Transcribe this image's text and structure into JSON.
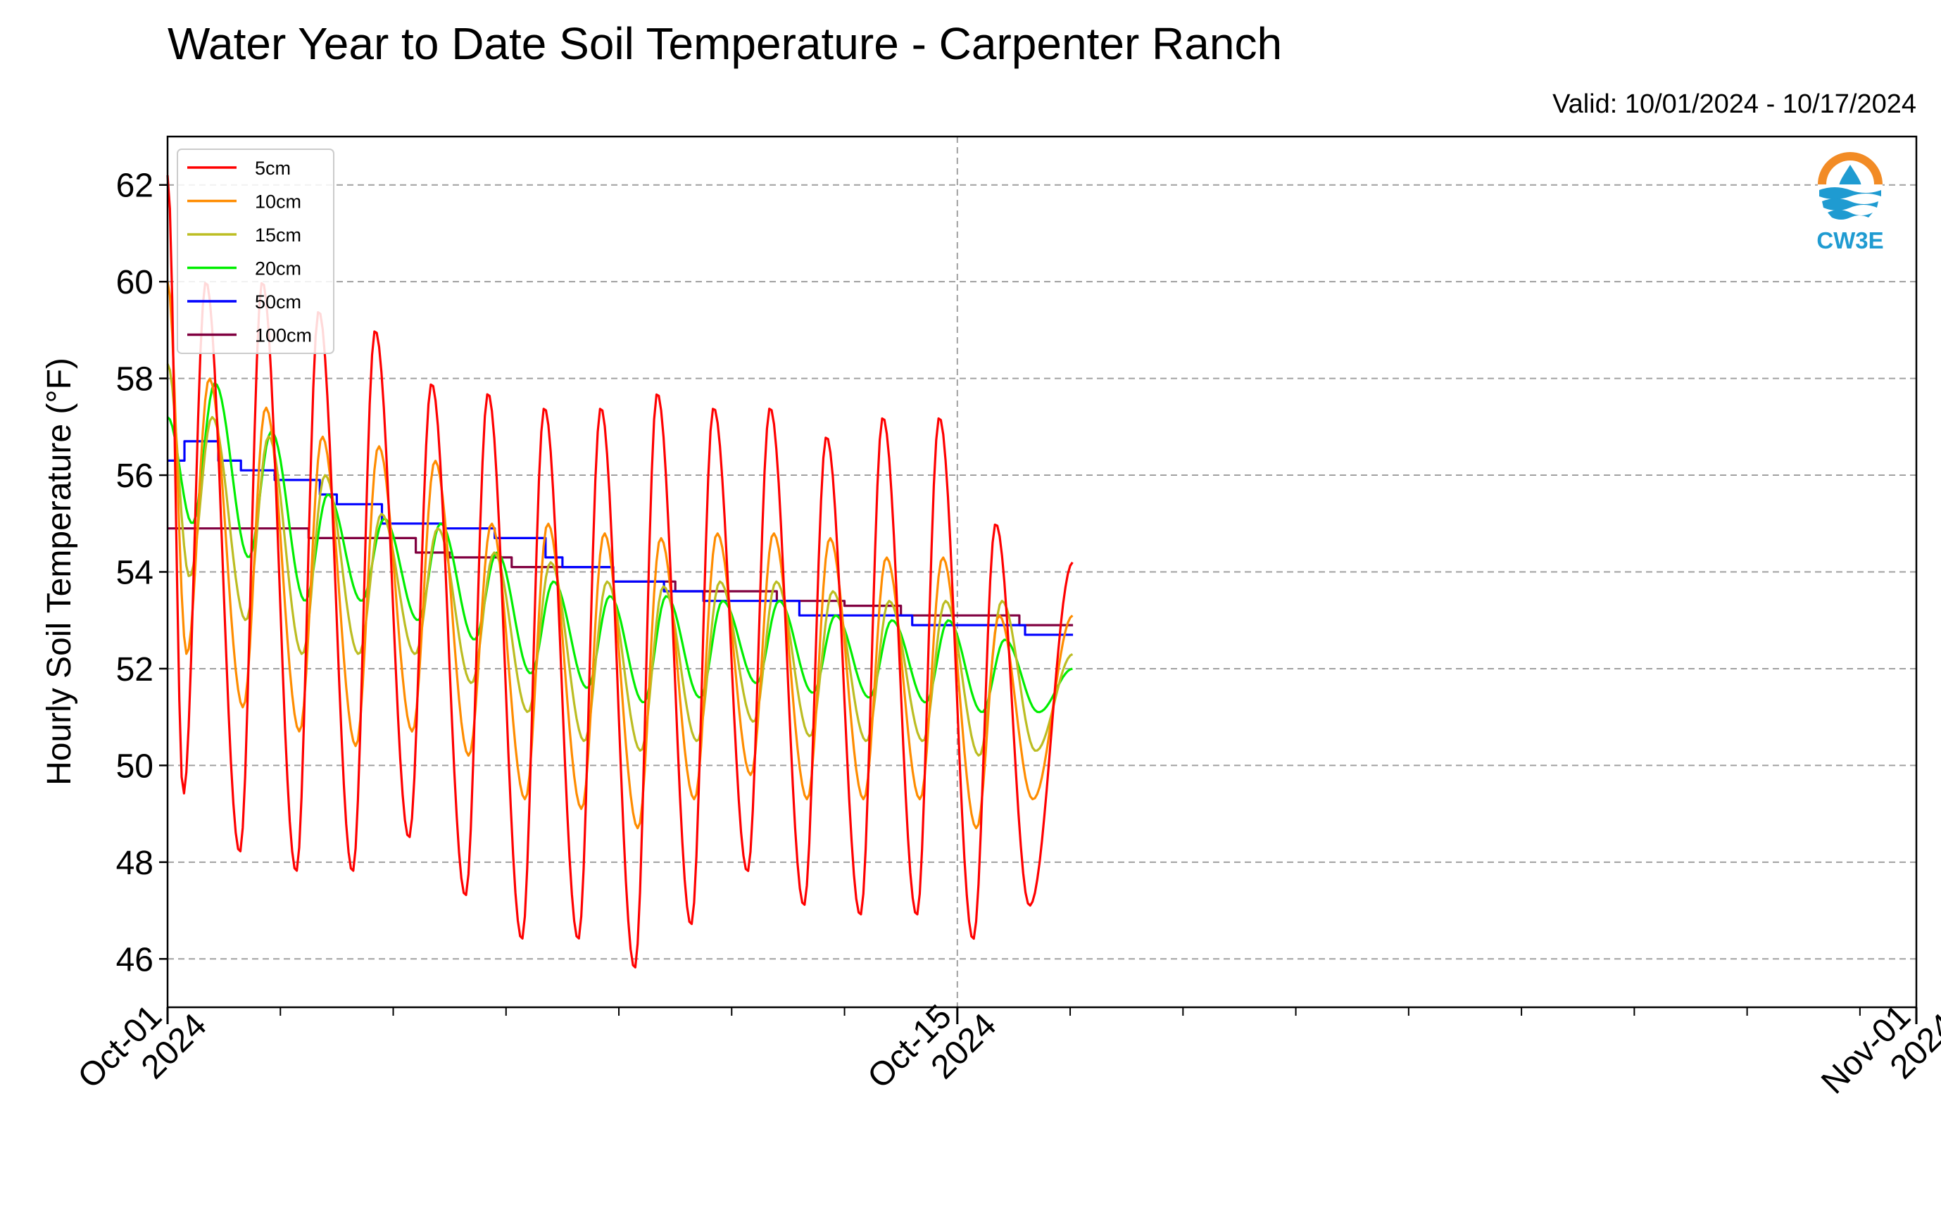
{
  "header": {
    "title": "Water Year to Date Soil Temperature - Carpenter Ranch",
    "valid": "Valid: 10/01/2024 - 10/17/2024"
  },
  "logo": {
    "text": "CW3E",
    "icon": "cw3e-water-drop-logo",
    "colors": [
      "#f28b25",
      "#1f9bd1"
    ]
  },
  "chart_data": {
    "type": "line",
    "title": "Water Year to Date Soil Temperature - Carpenter Ranch",
    "ylabel": "Hourly Soil Temperature (°F)",
    "xlabel": "",
    "ylim": [
      45,
      63
    ],
    "xlim_days": [
      0,
      31
    ],
    "grid": true,
    "legend_position": "top-left",
    "y_ticks": [
      46,
      48,
      50,
      52,
      54,
      56,
      58,
      60,
      62
    ],
    "x_major_ticks": [
      {
        "day": 0,
        "label": [
          "Oct-01",
          "2024"
        ]
      },
      {
        "day": 14,
        "label": [
          "Oct-15",
          "2024"
        ]
      },
      {
        "day": 31,
        "label": [
          "Nov-01",
          "2024"
        ]
      }
    ],
    "series": [
      {
        "name": "5cm",
        "color": "#ff0000",
        "start": 62.2,
        "end": 54.2,
        "end_day": 16.05,
        "phase": 0.0,
        "max": [
          60.0,
          60.0,
          59.4,
          59.0,
          57.9,
          57.7,
          57.4,
          57.4,
          57.7,
          57.4,
          57.4,
          56.8,
          57.2,
          57.2,
          55.0
        ],
        "min": [
          49.4,
          48.2,
          47.8,
          47.8,
          48.5,
          47.3,
          46.4,
          46.4,
          45.8,
          46.7,
          47.8,
          47.1,
          46.9,
          46.9,
          46.4,
          47.1
        ]
      },
      {
        "name": "10cm",
        "color": "#ff8c00",
        "start": 60.0,
        "end": 53.1,
        "end_day": 16.05,
        "phase": 0.06,
        "max": [
          58.0,
          57.4,
          56.8,
          56.6,
          56.3,
          55.0,
          55.0,
          54.8,
          54.7,
          54.8,
          54.8,
          54.7,
          54.3,
          54.3,
          53.1
        ],
        "min": [
          52.3,
          51.2,
          50.7,
          50.4,
          50.7,
          50.2,
          49.3,
          49.1,
          48.7,
          49.3,
          49.8,
          49.3,
          49.3,
          49.3,
          48.7,
          49.3
        ]
      },
      {
        "name": "15cm",
        "color": "#bcbd22",
        "start": 58.3,
        "end": 52.3,
        "end_day": 16.05,
        "phase": 0.11,
        "max": [
          57.2,
          56.8,
          56.0,
          55.2,
          54.9,
          54.4,
          54.2,
          53.8,
          53.7,
          53.8,
          53.8,
          53.6,
          53.4,
          53.4,
          53.4
        ],
        "min": [
          53.9,
          53.0,
          52.3,
          52.3,
          52.3,
          51.7,
          51.1,
          50.5,
          50.3,
          50.5,
          50.9,
          50.6,
          50.5,
          50.5,
          50.2,
          50.3
        ]
      },
      {
        "name": "20cm",
        "color": "#00ee00",
        "start": 57.2,
        "end": 52.0,
        "end_day": 16.05,
        "phase": 0.16,
        "max": [
          57.9,
          56.9,
          55.6,
          55.1,
          55.0,
          54.4,
          53.8,
          53.5,
          53.5,
          53.4,
          53.4,
          53.1,
          53.0,
          53.0,
          52.6
        ],
        "min": [
          55.0,
          54.3,
          53.4,
          53.4,
          53.0,
          52.6,
          51.9,
          51.6,
          51.3,
          51.4,
          51.7,
          51.5,
          51.4,
          51.3,
          51.1,
          51.1
        ]
      },
      {
        "name": "50cm",
        "color": "#0000ff",
        "steps": [
          [
            0,
            56.3
          ],
          [
            0.3,
            56.7
          ],
          [
            0.9,
            56.3
          ],
          [
            1.3,
            56.1
          ],
          [
            1.9,
            55.9
          ],
          [
            2.7,
            55.6
          ],
          [
            3.0,
            55.4
          ],
          [
            3.8,
            55.0
          ],
          [
            4.9,
            54.9
          ],
          [
            5.8,
            54.7
          ],
          [
            6.7,
            54.3
          ],
          [
            7.0,
            54.1
          ],
          [
            7.9,
            53.8
          ],
          [
            8.8,
            53.6
          ],
          [
            9.5,
            53.4
          ],
          [
            11.0,
            53.4
          ],
          [
            11.2,
            53.1
          ],
          [
            12.0,
            53.1
          ],
          [
            13.2,
            52.9
          ],
          [
            14.0,
            52.9
          ],
          [
            15.2,
            52.7
          ],
          [
            15.5,
            52.7
          ]
        ],
        "end_day": 16.05
      },
      {
        "name": "100cm",
        "color": "#800040",
        "steps": [
          [
            0,
            54.9
          ],
          [
            2.5,
            54.7
          ],
          [
            3.0,
            54.7
          ],
          [
            4.4,
            54.4
          ],
          [
            5.0,
            54.3
          ],
          [
            6.1,
            54.1
          ],
          [
            7.0,
            54.1
          ],
          [
            7.9,
            53.8
          ],
          [
            9.0,
            53.6
          ],
          [
            10.0,
            53.6
          ],
          [
            10.8,
            53.4
          ],
          [
            12.0,
            53.3
          ],
          [
            13.0,
            53.1
          ],
          [
            14.0,
            53.1
          ],
          [
            15.1,
            52.9
          ]
        ],
        "end_day": 16.05
      }
    ]
  }
}
